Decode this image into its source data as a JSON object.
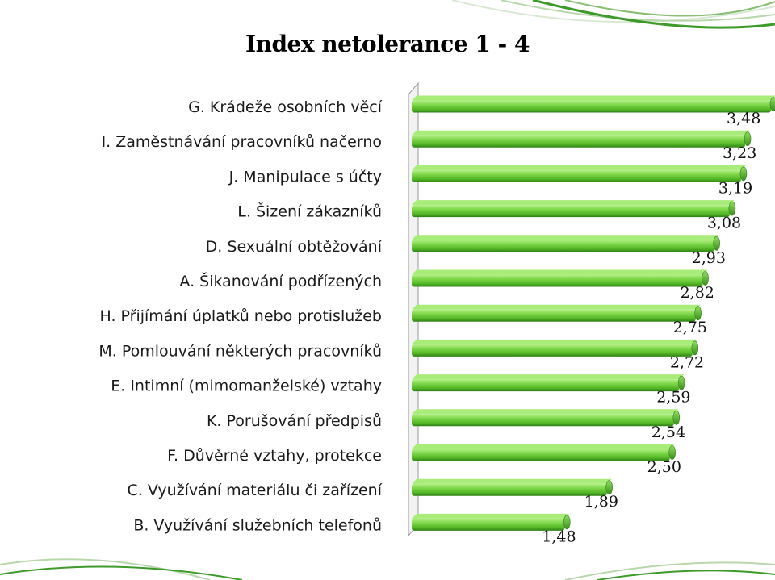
{
  "slide": {
    "title": "Index netolerance 1 - 4"
  },
  "colors": {
    "bar_fill": "#66cc33",
    "bar_light": "#a8ec7a",
    "bar_dark": "#2e7d18",
    "bar_end": "#5bb82a",
    "deco_green": "#3e9a2a"
  },
  "chart_data": {
    "type": "bar",
    "orientation": "horizontal",
    "categories": [
      "G. Krádeže osobních věcí",
      "I. Zaměstnávání pracovníků načerno",
      "J. Manipulace s účty",
      "L. Šizení zákazníků",
      "D. Sexuální obtěžování",
      "A. Šikanování podřízených",
      "H. Přijímání úplatků nebo protislužeb",
      "M. Pomlouvání  některých pracovníků",
      "E. Intimní (mimomanželské) vztahy",
      "K. Porušování předpisů",
      "F. Důvěrné vztahy, protekce",
      "C. Využívání materiálu či zařízení",
      "B. Využívání služebních telefonů"
    ],
    "values": [
      3.48,
      3.23,
      3.19,
      3.08,
      2.93,
      2.82,
      2.75,
      2.72,
      2.59,
      2.54,
      2.5,
      1.89,
      1.48
    ],
    "data_labels": [
      "3,48",
      "3,23",
      "3,19",
      "3,08",
      "2,93",
      "2,82",
      "2,75",
      "2,72",
      "2,59",
      "2,54",
      "2,50",
      "1,89",
      "1,48"
    ],
    "xlim": [
      0,
      3.48
    ],
    "grid": false,
    "legend": "none",
    "xlabel": "",
    "ylabel": ""
  }
}
